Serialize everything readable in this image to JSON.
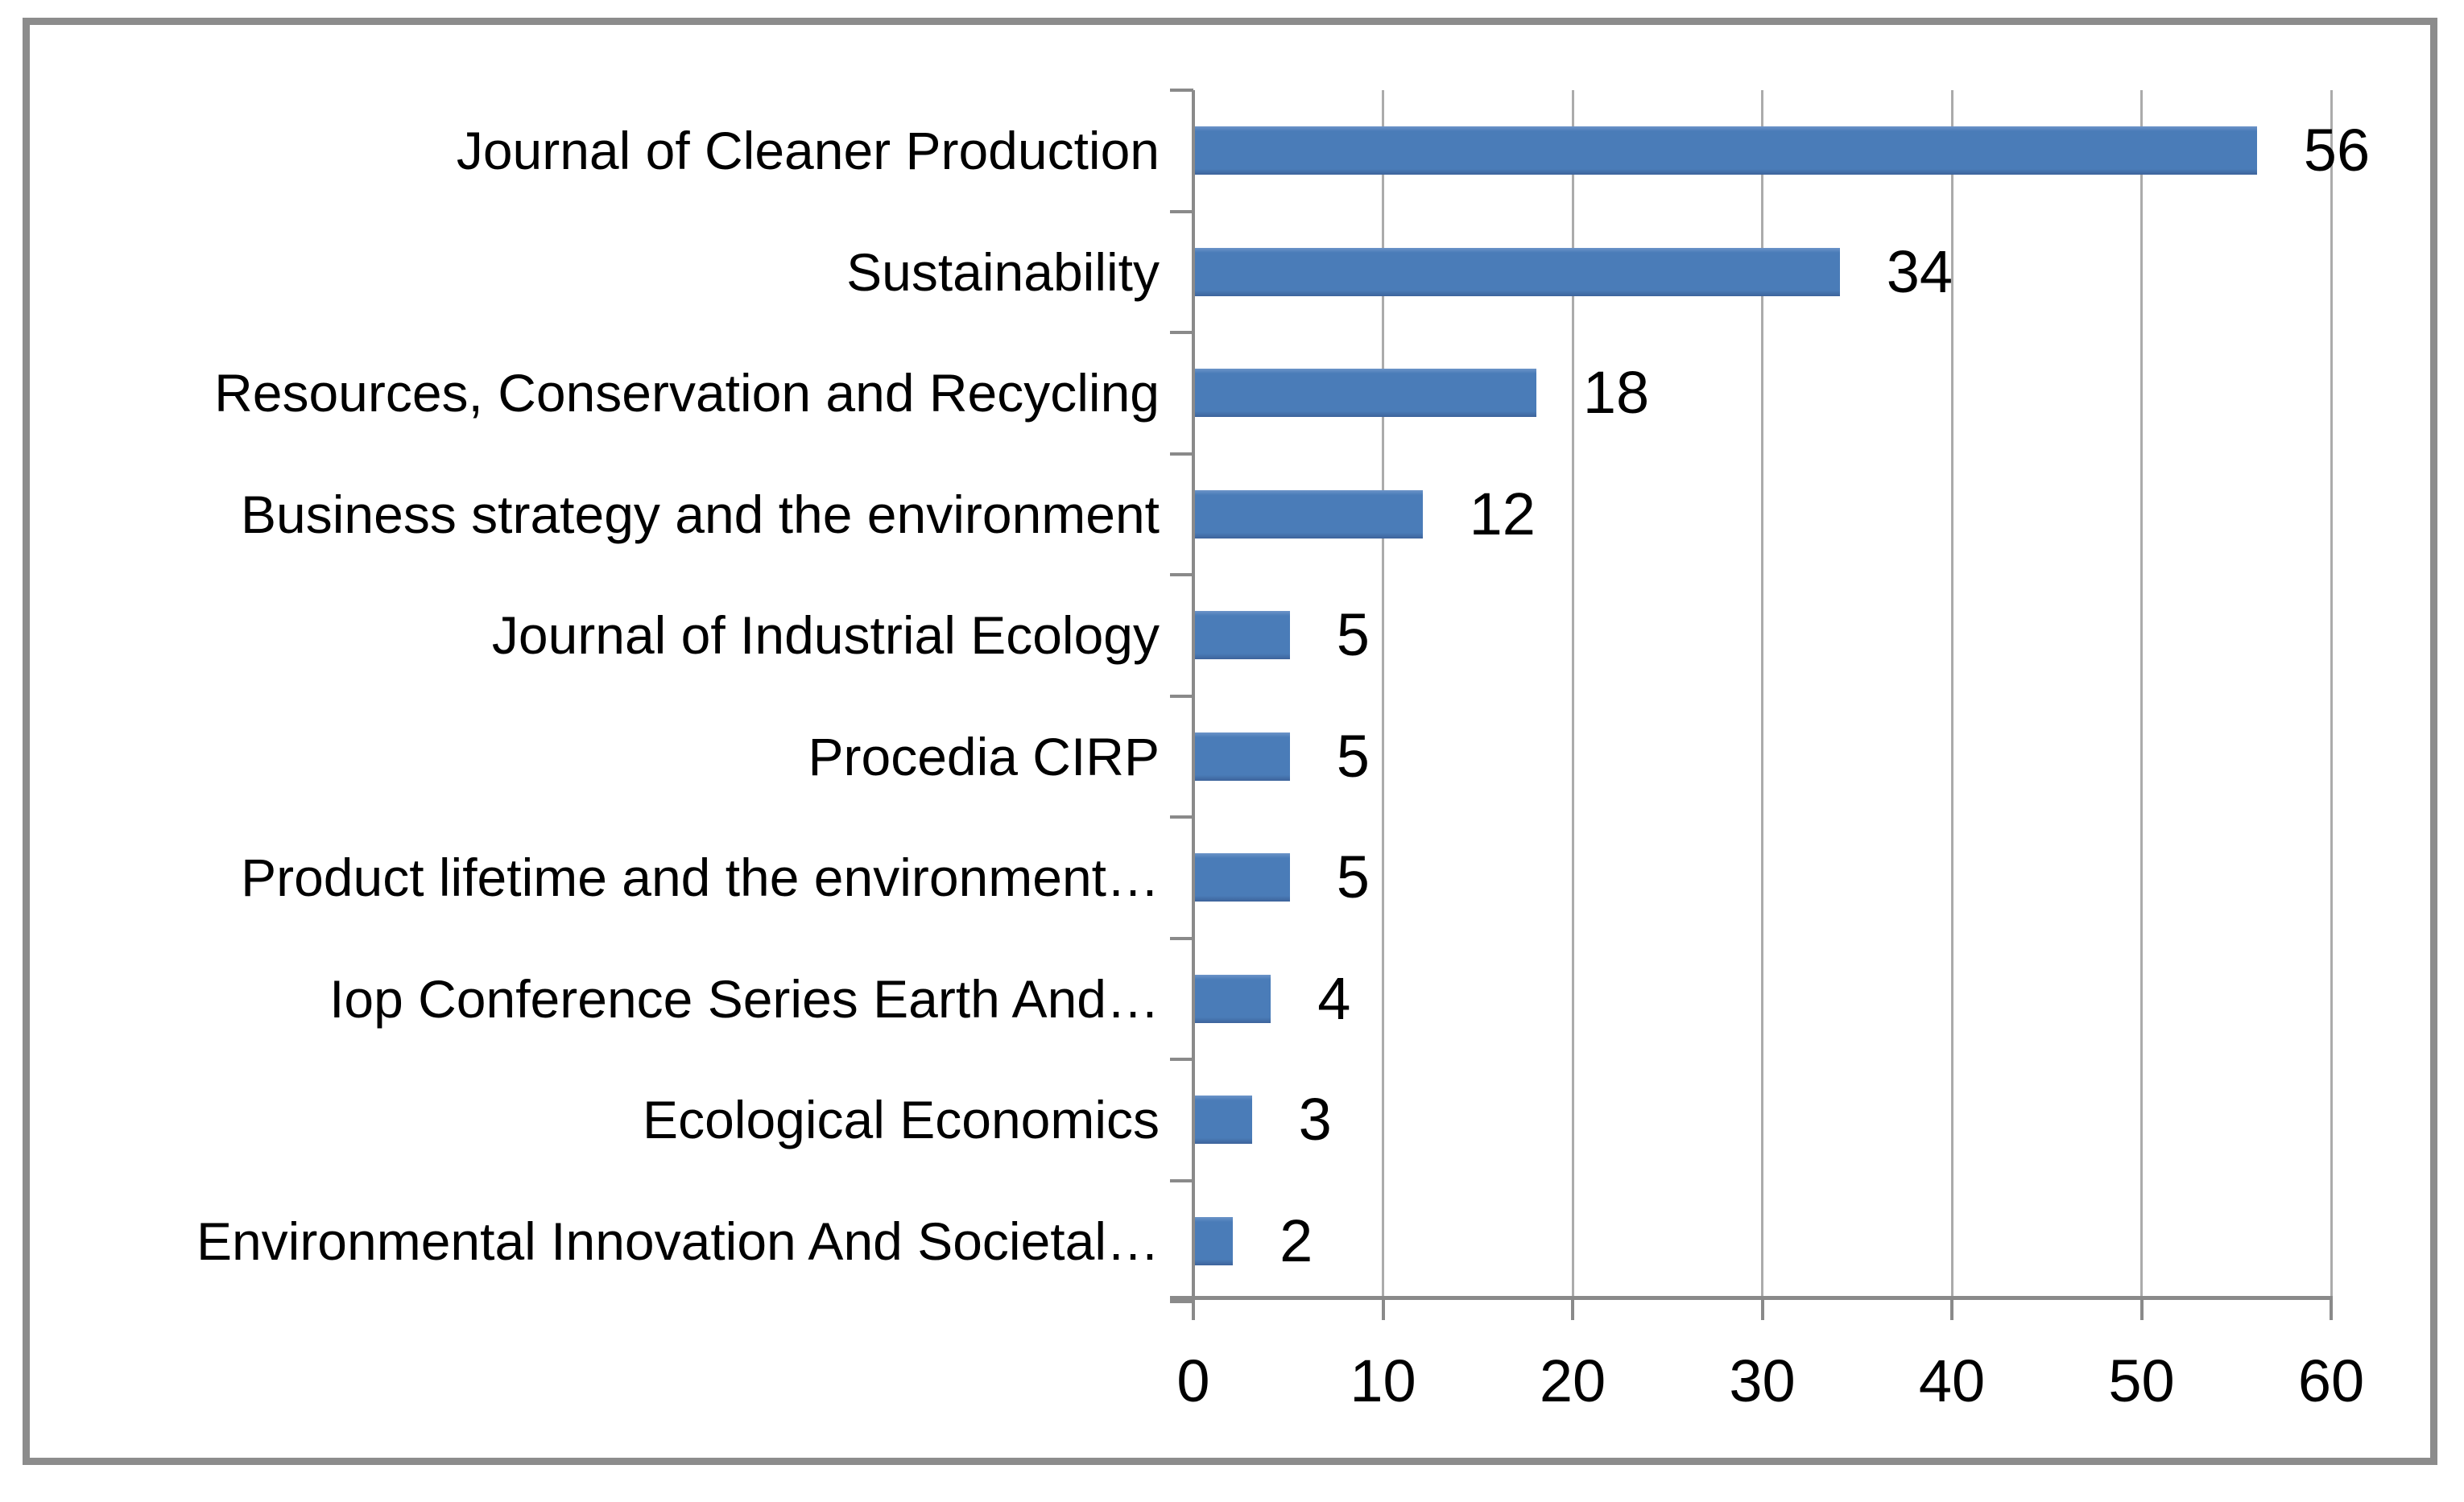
{
  "chart_data": {
    "type": "bar",
    "orientation": "horizontal",
    "title": "",
    "xlabel": "",
    "ylabel": "",
    "categories": [
      "Journal of Cleaner Production",
      "Sustainability",
      "Resources, Conservation and Recycling",
      "Business strategy and the environment",
      "Journal of Industrial Ecology",
      "Procedia CIRP",
      "Product lifetime and the environment…",
      "Iop Conference Series Earth And…",
      "Ecological Economics",
      "Environmental Innovation And Societal…"
    ],
    "values": [
      56,
      34,
      18,
      12,
      5,
      5,
      5,
      4,
      3,
      2
    ],
    "data_labels": [
      "56",
      "34",
      "18",
      "12",
      "5",
      "5",
      "5",
      "4",
      "3",
      "2"
    ],
    "xlim": [
      0,
      60
    ],
    "xticks": [
      0,
      10,
      20,
      30,
      40,
      50,
      60
    ],
    "xtick_labels": [
      "0",
      "10",
      "20",
      "30",
      "40",
      "50",
      "60"
    ],
    "grid": true,
    "legend": false,
    "bar_color": "#4A7CB8",
    "grid_color": "#ABABAB",
    "axis_color": "#8A8A8A",
    "frame_color": "#8C8C8C",
    "text_color": "#000000"
  }
}
